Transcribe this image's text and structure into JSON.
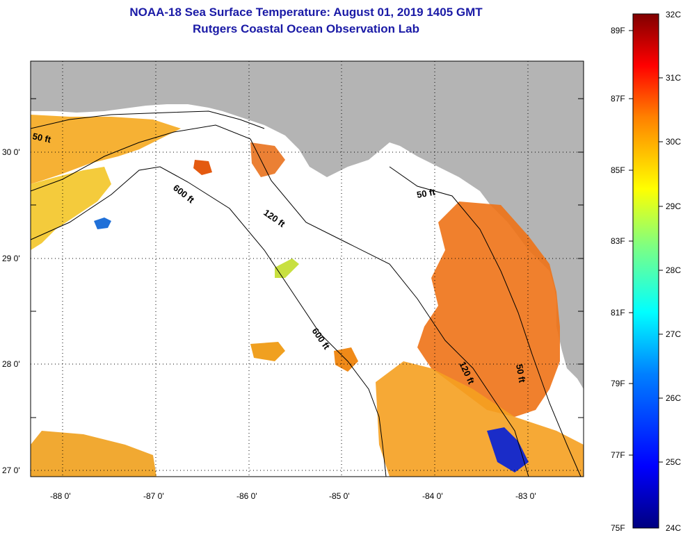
{
  "header": {
    "title": "NOAA-18 Sea Surface Temperature:  August 01, 2019 1405 GMT",
    "subtitle": "Rutgers Coastal Ocean Observation Lab"
  },
  "map": {
    "lon_labels": [
      "-88 0'",
      "-87 0'",
      "-86 0'",
      "-85 0'",
      "-84 0'",
      "-83 0'"
    ],
    "lat_labels": [
      "30 0'",
      "29 0'",
      "28 0'",
      "27 0'"
    ],
    "contour_labels": {
      "c50_west": "50 ft",
      "c600_north": "600 ft",
      "c120_north": "120 ft",
      "c50_east": "50 ft",
      "c600_south": "600 ft",
      "c120_south": "120 ft",
      "c50_south": "50 ft"
    },
    "colors": {
      "land": "#b4b4b4",
      "no_data": "#ffffff"
    }
  },
  "colorbar": {
    "celsius_labels": [
      "32C",
      "31C",
      "30C",
      "29C",
      "28C",
      "27C",
      "26C",
      "25C",
      "24C"
    ],
    "fahrenheit_labels": [
      "89F",
      "87F",
      "85F",
      "83F",
      "81F",
      "79F",
      "77F",
      "75F"
    ],
    "colors": [
      "#800000",
      "#ff0000",
      "#ff8000",
      "#ffff00",
      "#80ff80",
      "#00ffff",
      "#0080ff",
      "#0000ff",
      "#000080"
    ]
  }
}
